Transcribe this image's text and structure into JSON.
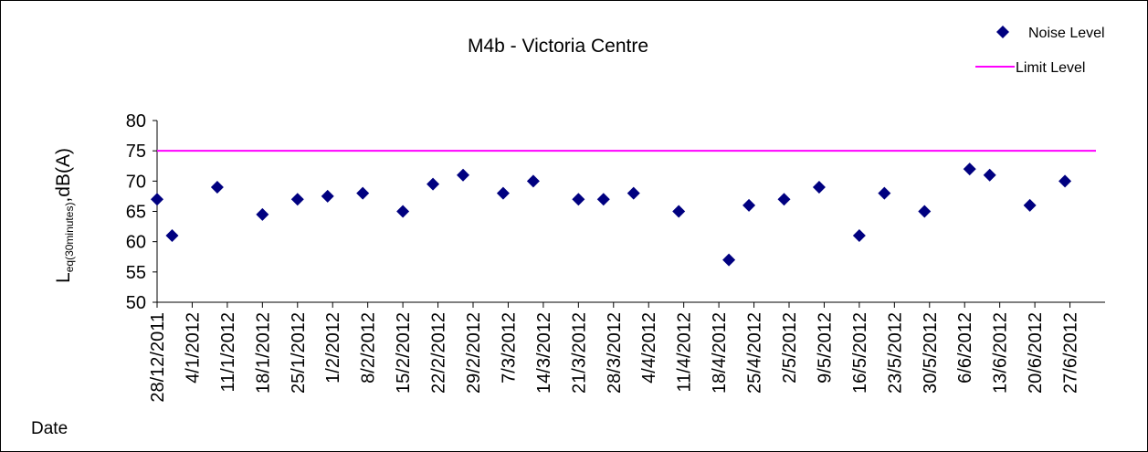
{
  "chart_data": {
    "type": "scatter",
    "title": "M4b - Victoria Centre",
    "ylabel": {
      "main": "L",
      "sub": "eq(30minutes)",
      "rest": ",dB(A)"
    },
    "xlabel": "Date",
    "ylim": [
      50,
      80
    ],
    "yticks": [
      50,
      55,
      60,
      65,
      70,
      75,
      80
    ],
    "grid": false,
    "legend_placement": "top-right",
    "categories": [
      "28/12/2011",
      "4/1/2012",
      "11/1/2012",
      "18/1/2012",
      "25/1/2012",
      "1/2/2012",
      "8/2/2012",
      "15/2/2012",
      "22/2/2012",
      "29/2/2012",
      "7/3/2012",
      "14/3/2012",
      "21/3/2012",
      "28/3/2012",
      "4/4/2012",
      "11/4/2012",
      "18/4/2012",
      "25/4/2012",
      "2/5/2012",
      "9/5/2012",
      "16/5/2012",
      "23/5/2012",
      "30/5/2012",
      "6/6/2012",
      "13/6/2012",
      "20/6/2012",
      "27/6/2012"
    ],
    "series": [
      {
        "name": "Noise Level",
        "marker": "diamond",
        "color": "#000080",
        "points": [
          {
            "x": "28/12/2011",
            "y": 67
          },
          {
            "x": "31/12/2011",
            "y": 61
          },
          {
            "x": "9/1/2012",
            "y": 69
          },
          {
            "x": "18/1/2012",
            "y": 64.5
          },
          {
            "x": "25/1/2012",
            "y": 67
          },
          {
            "x": "31/1/2012",
            "y": 67.5
          },
          {
            "x": "7/2/2012",
            "y": 68
          },
          {
            "x": "15/2/2012",
            "y": 65
          },
          {
            "x": "21/2/2012",
            "y": 69.5
          },
          {
            "x": "27/2/2012",
            "y": 71
          },
          {
            "x": "6/3/2012",
            "y": 68
          },
          {
            "x": "12/3/2012",
            "y": 70
          },
          {
            "x": "21/3/2012",
            "y": 67
          },
          {
            "x": "26/3/2012",
            "y": 67
          },
          {
            "x": "1/4/2012",
            "y": 68
          },
          {
            "x": "10/4/2012",
            "y": 65
          },
          {
            "x": "20/4/2012",
            "y": 57
          },
          {
            "x": "24/4/2012",
            "y": 66
          },
          {
            "x": "1/5/2012",
            "y": 67
          },
          {
            "x": "8/5/2012",
            "y": 69
          },
          {
            "x": "16/5/2012",
            "y": 61
          },
          {
            "x": "21/5/2012",
            "y": 68
          },
          {
            "x": "29/5/2012",
            "y": 65
          },
          {
            "x": "7/6/2012",
            "y": 72
          },
          {
            "x": "11/6/2012",
            "y": 71
          },
          {
            "x": "19/6/2012",
            "y": 66
          },
          {
            "x": "26/6/2012",
            "y": 70
          }
        ]
      },
      {
        "name": "Limit Level",
        "marker": "line",
        "color": "#ff00ff",
        "value": 75
      }
    ]
  }
}
